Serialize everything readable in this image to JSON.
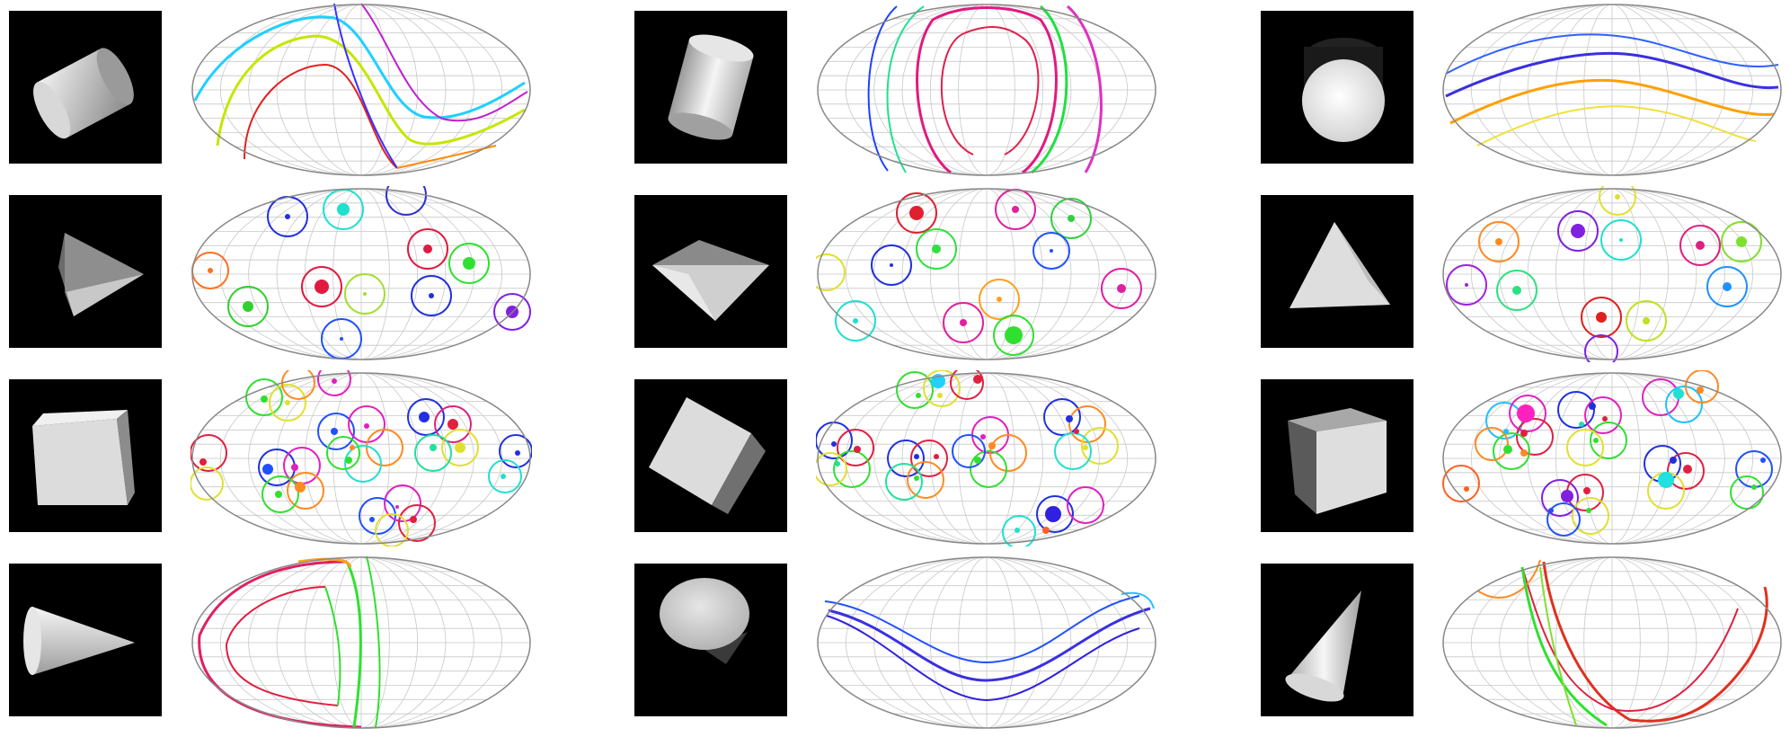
{
  "figure": {
    "columns": 3,
    "rows": 4,
    "panels": [
      {
        "shape": "cylinder",
        "pattern": "curves"
      },
      {
        "shape": "cylinder",
        "pattern": "curves"
      },
      {
        "shape": "cylinder",
        "pattern": "curves"
      },
      {
        "shape": "tetrahedron",
        "pattern": "rings"
      },
      {
        "shape": "tetrahedron",
        "pattern": "rings"
      },
      {
        "shape": "tetrahedron",
        "pattern": "rings"
      },
      {
        "shape": "cube",
        "pattern": "clusters"
      },
      {
        "shape": "cube",
        "pattern": "clusters"
      },
      {
        "shape": "cube",
        "pattern": "clusters"
      },
      {
        "shape": "cone",
        "pattern": "curves"
      },
      {
        "shape": "cone",
        "pattern": "curves"
      },
      {
        "shape": "cone",
        "pattern": "curves"
      }
    ]
  },
  "colors": {
    "background": "#ffffff",
    "render_background": "#000000",
    "graticule": "#c8c8c8",
    "map_outline": "#888888"
  }
}
